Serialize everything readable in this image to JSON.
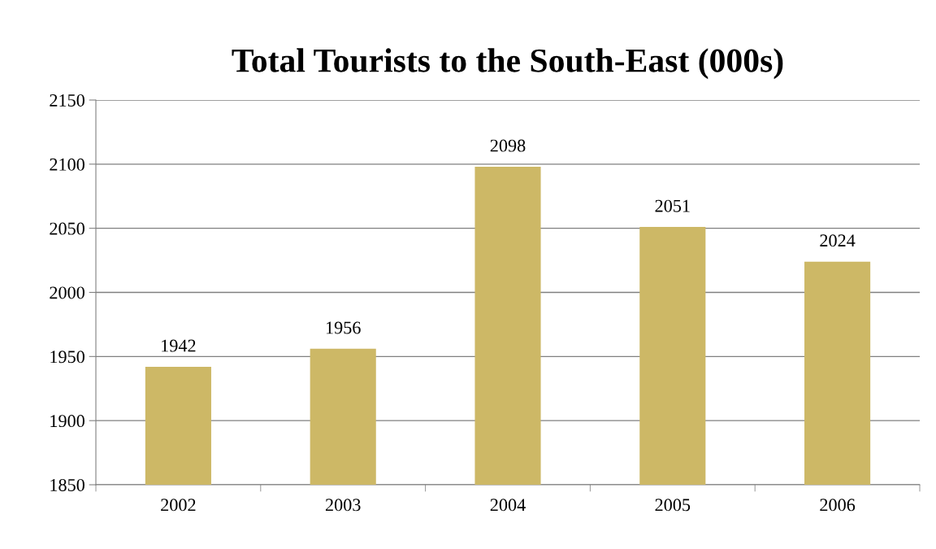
{
  "chart_data": {
    "type": "bar",
    "title": "Total Tourists to the South-East (000s)",
    "categories": [
      "2002",
      "2003",
      "2004",
      "2005",
      "2006"
    ],
    "values": [
      1942,
      1956,
      2098,
      2051,
      2024
    ],
    "color": "#cdb866",
    "ylim": [
      1850,
      2150
    ],
    "yticks": [
      1850,
      1900,
      1950,
      2000,
      2050,
      2100,
      2150
    ],
    "grid": "y",
    "data_labels": true
  }
}
